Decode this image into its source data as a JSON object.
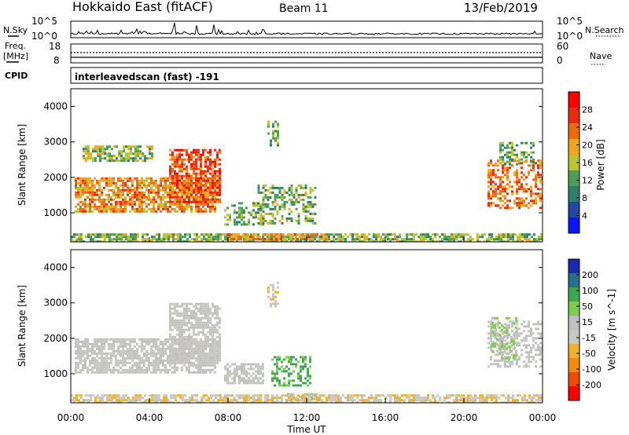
{
  "header": {
    "title": "Hokkaido East (fitACF)",
    "beam": "Beam 11",
    "date": "13/Feb/2019"
  },
  "status_panels": {
    "nsky_label": "N.Sky",
    "nsearch_label": "N.Search",
    "noise_ticks": [
      "10^5",
      "10^0"
    ],
    "freq_label_1": "Freq.",
    "freq_label_2": "[MHz]",
    "freq_ticks": [
      "18",
      "8"
    ],
    "nave_label": "Nave",
    "nave_ticks": [
      "60",
      "0"
    ],
    "cpid_label": "CPID",
    "cpid_value": "interleavedscan (fast) -191"
  },
  "colors": {
    "power_scale": [
      "#0a14ff",
      "#1f4aa0",
      "#2e7f68",
      "#4f9e55",
      "#b7c532",
      "#f0a51e",
      "#f06a10",
      "#e82c0e",
      "#ff0000"
    ],
    "velocity_scale": [
      "#ff0000",
      "#f04a0a",
      "#f28a10",
      "#f0b030",
      "#c8c8c0",
      "#c0c0c0",
      "#80cc50",
      "#3fa74f",
      "#2a6f8a",
      "#1a2ab0"
    ],
    "noise_line": "#000000"
  },
  "chart_data": [
    {
      "type": "heatmap",
      "name": "power",
      "xlabel": "",
      "ylabel": "Slant Range [km]",
      "colorbar_label": "Power [dB]",
      "colorbar_ticks": [
        "28",
        "24",
        "20",
        "16",
        "12",
        "8",
        "4"
      ],
      "colorbar_range": [
        0,
        32
      ],
      "x_ticks": [
        "00:00",
        "04:00",
        "08:00",
        "12:00",
        "16:00",
        "20:00",
        "00:00"
      ],
      "x_range_hours": [
        0,
        24
      ],
      "y_ticks": [
        1000,
        2000,
        3000,
        4000
      ],
      "y_range_km": [
        180,
        4500
      ],
      "regions": [
        {
          "t0": 0.2,
          "t1": 7.4,
          "r0": 1050,
          "r1": 2000,
          "level": 22
        },
        {
          "t0": 5.0,
          "t1": 7.6,
          "r0": 1300,
          "r1": 2800,
          "level": 26
        },
        {
          "t0": 0.6,
          "t1": 4.2,
          "r0": 2500,
          "r1": 2900,
          "level": 14
        },
        {
          "t0": 7.8,
          "t1": 9.8,
          "r0": 700,
          "r1": 1300,
          "level": 12
        },
        {
          "t0": 9.5,
          "t1": 12.5,
          "r0": 700,
          "r1": 1800,
          "level": 13
        },
        {
          "t0": 10.0,
          "t1": 10.6,
          "r0": 2900,
          "r1": 3600,
          "level": 12
        },
        {
          "t0": 0.0,
          "t1": 24.0,
          "r0": 180,
          "r1": 420,
          "level": 14
        },
        {
          "t0": 8.0,
          "t1": 13.0,
          "r0": 240,
          "r1": 420,
          "level": 22
        },
        {
          "t0": 21.2,
          "t1": 24.0,
          "r0": 1150,
          "r1": 2500,
          "level": 24
        },
        {
          "t0": 21.8,
          "t1": 23.6,
          "r0": 2400,
          "r1": 3000,
          "level": 12
        }
      ]
    },
    {
      "type": "heatmap",
      "name": "velocity",
      "xlabel": "Time UT",
      "ylabel": "Slant Range [km]",
      "colorbar_label": "Velocity [m s^-1]",
      "colorbar_ticks": [
        "200",
        "100",
        "50",
        "15",
        "-15",
        "-50",
        "-100",
        "-200"
      ],
      "colorbar_range": [
        -250,
        250
      ],
      "x_ticks": [
        "00:00",
        "04:00",
        "08:00",
        "12:00",
        "16:00",
        "20:00",
        "00:00"
      ],
      "x_range_hours": [
        0,
        24
      ],
      "y_ticks": [
        1000,
        2000,
        3000,
        4000
      ],
      "y_range_km": [
        180,
        4500
      ],
      "regions": [
        {
          "t0": 0.2,
          "t1": 7.4,
          "r0": 1050,
          "r1": 2000,
          "level": 0
        },
        {
          "t0": 5.0,
          "t1": 7.6,
          "r0": 1300,
          "r1": 3000,
          "level": -10
        },
        {
          "t0": 7.8,
          "t1": 9.8,
          "r0": 750,
          "r1": 1300,
          "level": 0
        },
        {
          "t0": 10.2,
          "t1": 12.2,
          "r0": 700,
          "r1": 1500,
          "level": 120
        },
        {
          "t0": 11.0,
          "t1": 12.5,
          "r0": 300,
          "r1": 450,
          "level": 60
        },
        {
          "t0": 0.0,
          "t1": 24.0,
          "r0": 180,
          "r1": 420,
          "level": -50
        },
        {
          "t0": 21.2,
          "t1": 24.0,
          "r0": 1200,
          "r1": 2500,
          "level": 10
        },
        {
          "t0": 21.4,
          "t1": 22.6,
          "r0": 1400,
          "r1": 2600,
          "level": 60
        },
        {
          "t0": 10.0,
          "t1": 10.6,
          "r0": 2900,
          "r1": 3600,
          "level": -30
        }
      ]
    }
  ]
}
